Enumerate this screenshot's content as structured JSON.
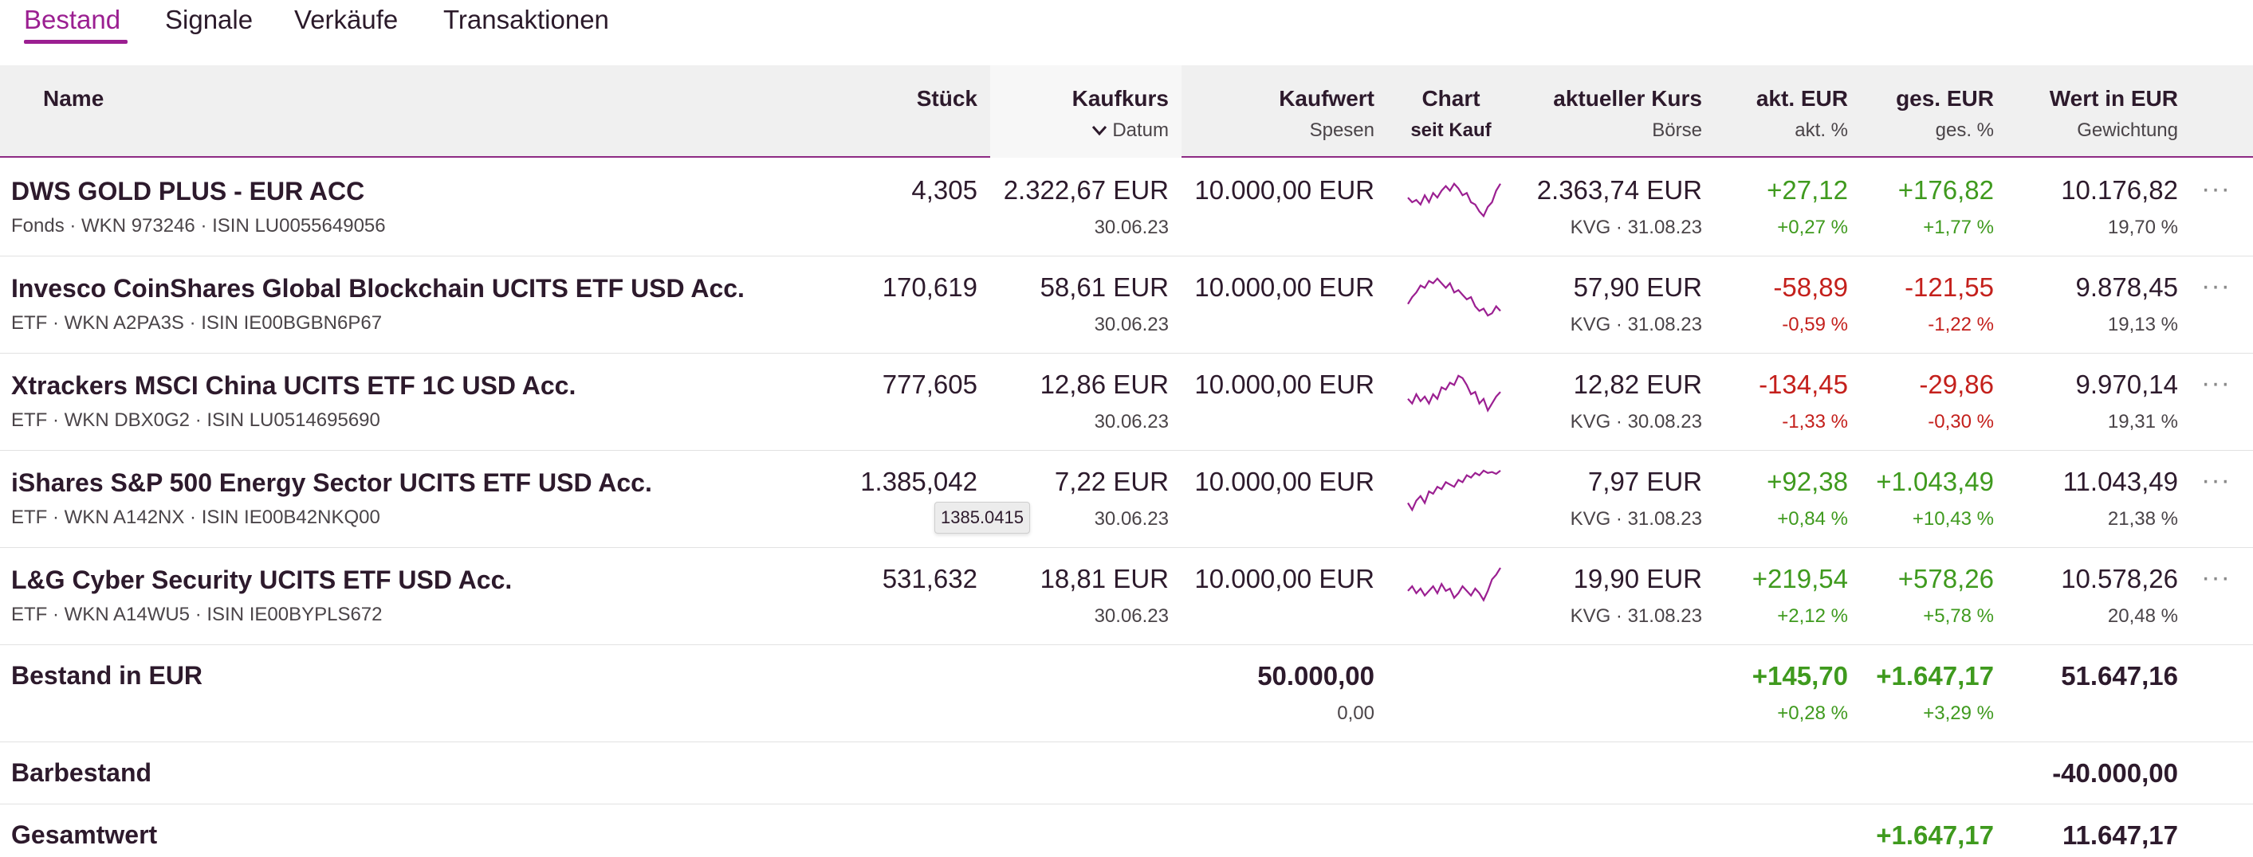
{
  "tabs": [
    "Bestand",
    "Signale",
    "Verkäufe",
    "Transaktionen"
  ],
  "colors": {
    "accent": "#9b1f91",
    "positive": "#3f9a1e",
    "negative": "#c4201c"
  },
  "header": {
    "name": "Name",
    "stueck": "Stück",
    "kaufkurs": "Kaufkurs",
    "datum": "Datum",
    "kaufwert": "Kaufwert",
    "spesen": "Spesen",
    "chart": "Chart",
    "seit_kauf": "seit Kauf",
    "aktueller_kurs": "aktueller Kurs",
    "boerse": "Börse",
    "akt_eur": "akt. EUR",
    "akt_pct": "akt. %",
    "ges_eur": "ges. EUR",
    "ges_pct": "ges. %",
    "wert": "Wert in EUR",
    "gewichtung": "Gewichtung"
  },
  "rows": [
    {
      "name": "DWS GOLD PLUS - EUR ACC",
      "meta": "Fonds · WKN 973246 · ISIN LU0055649056",
      "stueck": "4,305",
      "kaufkurs": "2.322,67 EUR",
      "datum": "30.06.23",
      "kaufwert": "10.000,00 EUR",
      "kurs": "2.363,74 EUR",
      "boerse": "KVG · 31.08.23",
      "akt_eur": "+27,12",
      "akt_pct": "+0,27 %",
      "ges_eur": "+176,82",
      "ges_pct": "+1,77 %",
      "wert": "10.176,82",
      "gewichtung": "19,70 %",
      "more": "···",
      "spark": [
        0.45,
        0.55,
        0.5,
        0.6,
        0.4,
        0.55,
        0.35,
        0.45,
        0.3,
        0.2,
        0.3,
        0.15,
        0.25,
        0.4,
        0.35,
        0.55,
        0.6,
        0.75,
        0.85,
        0.65,
        0.55,
        0.3,
        0.15
      ]
    },
    {
      "name": "Invesco CoinShares Global Blockchain UCITS ETF USD Acc.",
      "meta": "ETF · WKN A2PA3S · ISIN IE00BGBN6P67",
      "stueck": "170,619",
      "kaufkurs": "58,61 EUR",
      "datum": "30.06.23",
      "kaufwert": "10.000,00 EUR",
      "kurs": "57,90 EUR",
      "boerse": "KVG · 31.08.23",
      "akt_eur": "-58,89",
      "akt_pct": "-0,59 %",
      "ges_eur": "-121,55",
      "ges_pct": "-1,22 %",
      "wert": "9.878,45",
      "gewichtung": "19,13 %",
      "more": "···",
      "spark": [
        0.65,
        0.5,
        0.4,
        0.25,
        0.3,
        0.15,
        0.2,
        0.1,
        0.2,
        0.3,
        0.2,
        0.4,
        0.35,
        0.45,
        0.55,
        0.5,
        0.7,
        0.8,
        0.75,
        0.9,
        0.85,
        0.7,
        0.8
      ]
    },
    {
      "name": "Xtrackers MSCI China UCITS ETF 1C USD Acc.",
      "meta": "ETF · WKN DBX0G2 · ISIN LU0514695690",
      "stueck": "777,605",
      "kaufkurs": "12,86 EUR",
      "datum": "30.06.23",
      "kaufwert": "10.000,00 EUR",
      "kurs": "12,82 EUR",
      "boerse": "KVG · 30.08.23",
      "akt_eur": "-134,45",
      "akt_pct": "-1,33 %",
      "ges_eur": "-29,86",
      "ges_pct": "-0,30 %",
      "wert": "9.970,14",
      "gewichtung": "19,31 %",
      "more": "···",
      "spark": [
        0.6,
        0.7,
        0.5,
        0.65,
        0.55,
        0.7,
        0.5,
        0.6,
        0.35,
        0.4,
        0.25,
        0.3,
        0.1,
        0.15,
        0.3,
        0.5,
        0.45,
        0.7,
        0.6,
        0.85,
        0.7,
        0.55,
        0.45
      ]
    },
    {
      "name": "iShares S&P 500 Energy Sector UCITS ETF USD Acc.",
      "meta": "ETF · WKN A142NX · ISIN IE00B42NKQ00",
      "stueck": "1.385,042",
      "tooltip": "1385.0415",
      "kaufkurs": "7,22 EUR",
      "datum": "30.06.23",
      "kaufwert": "10.000,00 EUR",
      "kurs": "7,97 EUR",
      "boerse": "KVG · 31.08.23",
      "akt_eur": "+92,38",
      "akt_pct": "+0,84 %",
      "ges_eur": "+1.043,49",
      "ges_pct": "+10,43 %",
      "wert": "11.043,49",
      "gewichtung": "21,38 %",
      "more": "···",
      "spark": [
        0.75,
        0.9,
        0.7,
        0.6,
        0.75,
        0.5,
        0.55,
        0.4,
        0.45,
        0.3,
        0.35,
        0.4,
        0.25,
        0.3,
        0.15,
        0.2,
        0.1,
        0.15,
        0.05,
        0.1,
        0.08,
        0.12,
        0.05
      ]
    },
    {
      "name": "L&G Cyber Security UCITS ETF USD Acc.",
      "meta": "ETF · WKN A14WU5 · ISIN IE00BYPLS672",
      "stueck": "531,632",
      "kaufkurs": "18,81 EUR",
      "datum": "30.06.23",
      "kaufwert": "10.000,00 EUR",
      "kurs": "19,90 EUR",
      "boerse": "KVG · 31.08.23",
      "akt_eur": "+219,54",
      "akt_pct": "+2,12 %",
      "ges_eur": "+578,26",
      "ges_pct": "+5,78 %",
      "wert": "10.578,26",
      "gewichtung": "20,48 %",
      "more": "···",
      "spark": [
        0.55,
        0.45,
        0.6,
        0.5,
        0.65,
        0.55,
        0.45,
        0.6,
        0.4,
        0.55,
        0.5,
        0.7,
        0.6,
        0.45,
        0.55,
        0.65,
        0.5,
        0.6,
        0.75,
        0.55,
        0.3,
        0.2,
        0.05
      ]
    }
  ],
  "summary": {
    "bestand_label": "Bestand in EUR",
    "bestand_kaufwert": "50.000,00",
    "bestand_spesen": "0,00",
    "bestand_akt_eur": "+145,70",
    "bestand_akt_pct": "+0,28 %",
    "bestand_ges_eur": "+1.647,17",
    "bestand_ges_pct": "+3,29 %",
    "bestand_wert": "51.647,16",
    "bar_label": "Barbestand",
    "bar_wert": "-40.000,00",
    "gesamt_label": "Gesamtwert",
    "gesamt_ges_eur": "+1.647,17",
    "gesamt_wert": "11.647,17"
  }
}
